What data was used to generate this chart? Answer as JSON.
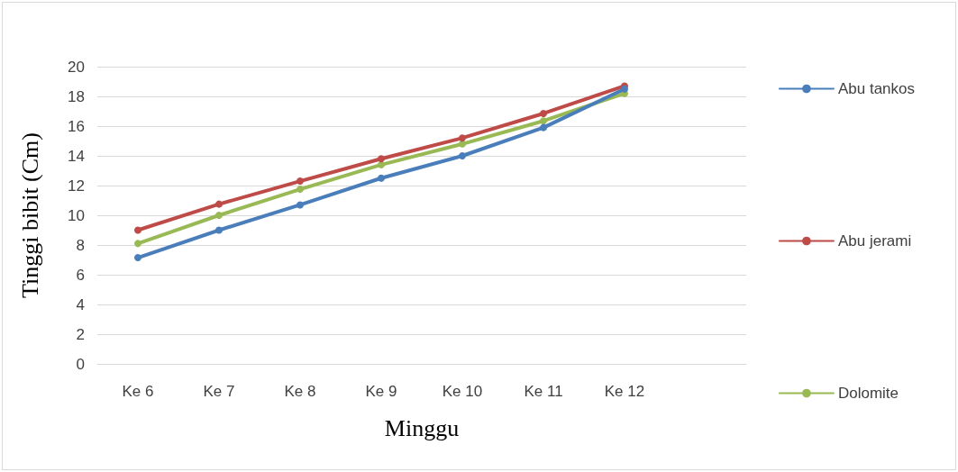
{
  "chart_data": {
    "type": "line",
    "xlabel": "Minggu",
    "ylabel": "Tinggi bibit (Cm)",
    "categories": [
      "Ke 6",
      "Ke 7",
      "Ke 8",
      "Ke 9",
      "Ke 10",
      "Ke 11",
      "Ke 12",
      null
    ],
    "series": [
      {
        "name": "Abu tankos",
        "color": "#4a7ebb",
        "values": [
          7.15,
          9.0,
          10.7,
          12.5,
          14.0,
          15.9,
          18.5,
          null
        ]
      },
      {
        "name": "Abu jerami",
        "color": "#be4b48",
        "values": [
          9.0,
          10.75,
          12.3,
          13.8,
          15.2,
          16.85,
          18.7,
          null
        ]
      },
      {
        "name": "Dolomite",
        "color": "#98b954",
        "values": [
          8.1,
          10.0,
          11.75,
          13.4,
          14.8,
          16.35,
          18.2,
          null
        ]
      }
    ],
    "ylim": [
      0,
      20
    ],
    "yticks": [
      0,
      2,
      4,
      6,
      8,
      10,
      12,
      14,
      16,
      18,
      20
    ],
    "grid": "y",
    "legend": "right",
    "marker": "circle",
    "line_style": "solid"
  }
}
